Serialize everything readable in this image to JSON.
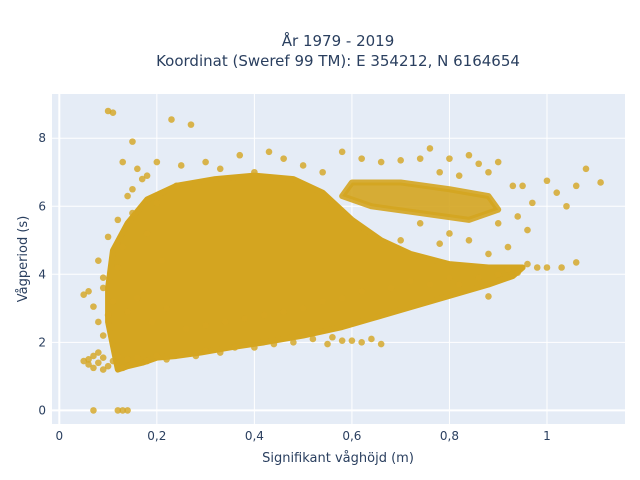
{
  "chart_data": {
    "type": "scatter",
    "title_line1": "År 1979 - 2019",
    "title_line2": "Koordinat (Sweref 99 TM): E 354212, N 6164654",
    "xlabel": "Signifikant våghöjd (m)",
    "ylabel": "Vågperiod (s)",
    "xlim": [
      -0.015,
      1.16
    ],
    "ylim": [
      -0.4,
      9.3
    ],
    "x_ticks": [
      {
        "value": 0,
        "label": "0"
      },
      {
        "value": 0.2,
        "label": "0,2"
      },
      {
        "value": 0.4,
        "label": "0,4"
      },
      {
        "value": 0.6,
        "label": "0,6"
      },
      {
        "value": 0.8,
        "label": "0,8"
      },
      {
        "value": 1.0,
        "label": "1"
      }
    ],
    "y_ticks": [
      {
        "value": 0,
        "label": "0"
      },
      {
        "value": 2,
        "label": "2"
      },
      {
        "value": 4,
        "label": "4"
      },
      {
        "value": 6,
        "label": "6"
      },
      {
        "value": 8,
        "label": "8"
      }
    ],
    "grid": true,
    "plot_bg": "#e5ecf6",
    "marker_color": "#d4a520",
    "series": [
      {
        "points": [
          [
            0.05,
            1.45
          ],
          [
            0.06,
            1.5
          ],
          [
            0.06,
            1.35
          ],
          [
            0.07,
            1.6
          ],
          [
            0.07,
            1.25
          ],
          [
            0.08,
            1.4
          ],
          [
            0.08,
            1.7
          ],
          [
            0.09,
            1.2
          ],
          [
            0.09,
            1.55
          ],
          [
            0.1,
            1.3
          ],
          [
            0.11,
            1.45
          ],
          [
            0.12,
            1.6
          ],
          [
            0.13,
            1.25
          ],
          [
            0.14,
            1.5
          ],
          [
            0.15,
            1.4
          ],
          [
            0.16,
            1.55
          ],
          [
            0.18,
            1.45
          ],
          [
            0.2,
            1.6
          ],
          [
            0.22,
            1.5
          ],
          [
            0.25,
            1.65
          ],
          [
            0.28,
            1.6
          ],
          [
            0.3,
            1.75
          ],
          [
            0.33,
            1.7
          ],
          [
            0.36,
            1.85
          ],
          [
            0.4,
            1.85
          ],
          [
            0.44,
            1.95
          ],
          [
            0.48,
            2.0
          ],
          [
            0.52,
            2.1
          ],
          [
            0.56,
            2.15
          ],
          [
            0.6,
            2.05
          ],
          [
            0.05,
            3.4
          ],
          [
            0.06,
            3.5
          ],
          [
            0.07,
            3.05
          ],
          [
            0.07,
            0.0
          ],
          [
            0.08,
            4.4
          ],
          [
            0.08,
            2.6
          ],
          [
            0.09,
            3.6
          ],
          [
            0.09,
            2.2
          ],
          [
            0.1,
            5.1
          ],
          [
            0.1,
            8.8
          ],
          [
            0.11,
            8.75
          ],
          [
            0.12,
            4.2
          ],
          [
            0.12,
            0.0
          ],
          [
            0.13,
            7.3
          ],
          [
            0.13,
            0.0
          ],
          [
            0.14,
            6.3
          ],
          [
            0.14,
            0.0
          ],
          [
            0.15,
            7.9
          ],
          [
            0.15,
            5.8
          ],
          [
            0.16,
            7.1
          ],
          [
            0.18,
            6.9
          ],
          [
            0.2,
            7.3
          ],
          [
            0.23,
            8.55
          ],
          [
            0.25,
            7.2
          ],
          [
            0.27,
            8.4
          ],
          [
            0.3,
            7.3
          ],
          [
            0.33,
            7.1
          ],
          [
            0.37,
            7.5
          ],
          [
            0.4,
            7.0
          ],
          [
            0.43,
            7.6
          ],
          [
            0.46,
            7.4
          ],
          [
            0.5,
            7.2
          ],
          [
            0.54,
            7.0
          ],
          [
            0.58,
            7.6
          ],
          [
            0.62,
            7.4
          ],
          [
            0.66,
            7.3
          ],
          [
            0.7,
            7.35
          ],
          [
            0.74,
            7.4
          ],
          [
            0.76,
            7.7
          ],
          [
            0.78,
            7.0
          ],
          [
            0.8,
            7.4
          ],
          [
            0.82,
            6.9
          ],
          [
            0.84,
            7.5
          ],
          [
            0.86,
            7.25
          ],
          [
            0.88,
            7.0
          ],
          [
            0.9,
            7.3
          ],
          [
            0.93,
            6.6
          ],
          [
            0.95,
            6.6
          ],
          [
            0.97,
            6.1
          ],
          [
            1.0,
            6.75
          ],
          [
            1.02,
            6.4
          ],
          [
            1.04,
            6.0
          ],
          [
            1.06,
            6.6
          ],
          [
            1.08,
            7.1
          ],
          [
            1.11,
            6.7
          ],
          [
            0.82,
            3.7
          ],
          [
            0.86,
            3.9
          ],
          [
            0.88,
            3.35
          ],
          [
            0.9,
            4.0
          ],
          [
            0.92,
            4.15
          ],
          [
            0.94,
            4.05
          ],
          [
            0.96,
            4.3
          ],
          [
            0.98,
            4.2
          ],
          [
            1.0,
            4.2
          ],
          [
            1.03,
            4.2
          ],
          [
            1.06,
            4.35
          ],
          [
            0.68,
            3.6
          ],
          [
            0.72,
            3.8
          ],
          [
            0.76,
            3.7
          ],
          [
            0.8,
            3.9
          ],
          [
            0.62,
            3.5
          ],
          [
            0.58,
            3.3
          ],
          [
            0.54,
            3.2
          ],
          [
            0.5,
            3.0
          ],
          [
            0.46,
            2.9
          ],
          [
            0.42,
            2.8
          ],
          [
            0.38,
            2.7
          ],
          [
            0.34,
            2.6
          ],
          [
            0.3,
            2.5
          ],
          [
            0.26,
            2.4
          ],
          [
            0.8,
            5.2
          ],
          [
            0.84,
            5.0
          ],
          [
            0.88,
            4.6
          ],
          [
            0.9,
            5.5
          ],
          [
            0.92,
            4.8
          ],
          [
            0.94,
            5.7
          ],
          [
            0.96,
            5.3
          ],
          [
            0.78,
            4.9
          ],
          [
            0.74,
            5.5
          ],
          [
            0.7,
            5.0
          ],
          [
            0.66,
            1.95
          ],
          [
            0.64,
            2.1
          ],
          [
            0.62,
            2.0
          ],
          [
            0.58,
            2.05
          ],
          [
            0.55,
            1.95
          ],
          [
            0.09,
            3.9
          ],
          [
            0.1,
            2.8
          ],
          [
            0.11,
            3.2
          ],
          [
            0.12,
            5.6
          ],
          [
            0.13,
            4.8
          ],
          [
            0.14,
            2.9
          ],
          [
            0.15,
            6.5
          ],
          [
            0.16,
            3.3
          ],
          [
            0.17,
            6.8
          ],
          [
            0.18,
            5.2
          ],
          [
            0.19,
            2.6
          ],
          [
            0.2,
            6.1
          ],
          [
            0.21,
            4.4
          ],
          [
            0.22,
            3.0
          ],
          [
            0.24,
            6.6
          ]
        ],
        "blob_points": [
          [
            0.12,
            1.2
          ],
          [
            0.14,
            1.3
          ],
          [
            0.17,
            1.4
          ],
          [
            0.2,
            1.55
          ],
          [
            0.24,
            1.6
          ],
          [
            0.29,
            1.7
          ],
          [
            0.35,
            1.85
          ],
          [
            0.42,
            2.0
          ],
          [
            0.5,
            2.2
          ],
          [
            0.58,
            2.45
          ],
          [
            0.64,
            2.7
          ],
          [
            0.7,
            2.95
          ],
          [
            0.76,
            3.2
          ],
          [
            0.82,
            3.45
          ],
          [
            0.88,
            3.7
          ],
          [
            0.93,
            3.95
          ],
          [
            0.95,
            4.2
          ],
          [
            0.88,
            4.2
          ],
          [
            0.8,
            4.3
          ],
          [
            0.72,
            4.6
          ],
          [
            0.66,
            5.0
          ],
          [
            0.6,
            5.6
          ],
          [
            0.54,
            6.4
          ],
          [
            0.48,
            6.8
          ],
          [
            0.4,
            6.9
          ],
          [
            0.32,
            6.8
          ],
          [
            0.24,
            6.6
          ],
          [
            0.18,
            6.2
          ],
          [
            0.14,
            5.5
          ],
          [
            0.11,
            4.7
          ],
          [
            0.1,
            3.6
          ],
          [
            0.1,
            2.6
          ],
          [
            0.11,
            1.9
          ]
        ],
        "upper_band": [
          [
            0.6,
            6.7
          ],
          [
            0.7,
            6.7
          ],
          [
            0.8,
            6.5
          ],
          [
            0.88,
            6.3
          ],
          [
            0.9,
            5.9
          ],
          [
            0.84,
            5.6
          ],
          [
            0.74,
            5.8
          ],
          [
            0.64,
            6.0
          ],
          [
            0.58,
            6.3
          ]
        ]
      }
    ]
  }
}
